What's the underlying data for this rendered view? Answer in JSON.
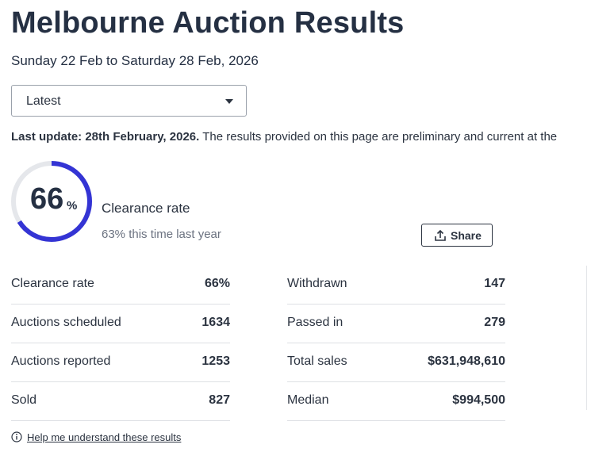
{
  "header": {
    "title": "Melbourne Auction Results",
    "subtitle": "Sunday 22 Feb to Saturday 28 Feb, 2026"
  },
  "dropdown": {
    "selected": "Latest"
  },
  "update": {
    "label": "Last update: 28th February, 2026.",
    "text": "The results provided on this page are preliminary and current at the"
  },
  "gauge": {
    "value": 66,
    "unit": "%",
    "label": "Clearance rate",
    "comparison": "63% this time last year"
  },
  "share": {
    "label": "Share"
  },
  "table": {
    "left": [
      [
        "Clearance rate",
        "66%"
      ],
      [
        "Auctions scheduled",
        "1634"
      ],
      [
        "Auctions reported",
        "1253"
      ],
      [
        "Sold",
        "827"
      ]
    ],
    "right": [
      [
        "Withdrawn",
        "147"
      ],
      [
        "Passed in",
        "279"
      ],
      [
        "Total sales",
        "$631,948,610"
      ],
      [
        "Median",
        "$994,500"
      ]
    ]
  },
  "footer": {
    "link": "Help me understand these results"
  }
}
